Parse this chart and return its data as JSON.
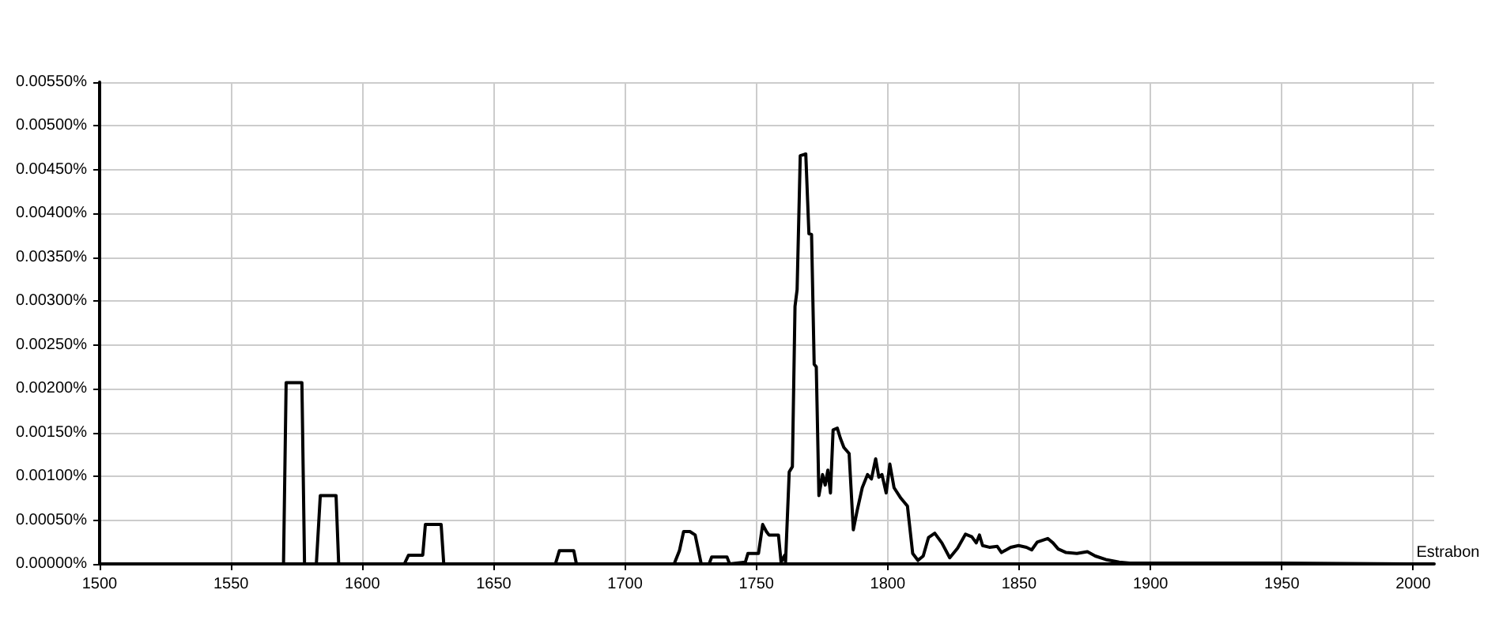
{
  "chart_data": {
    "type": "line",
    "series": [
      {
        "name": "Estrabon",
        "color": "#000000",
        "x": [
          1500,
          1570,
          1571,
          1577,
          1578,
          1582.5,
          1584,
          1590,
          1591,
          1616,
          1617.6,
          1623,
          1624,
          1630,
          1631,
          1673.5,
          1675,
          1680.5,
          1681.5,
          1718.7,
          1720.7,
          1722.3,
          1724.7,
          1726.7,
          1729,
          1732,
          1733,
          1738.8,
          1739.8,
          1745.8,
          1746.8,
          1750.8,
          1752.4,
          1753.8,
          1754.8,
          1758.4,
          1759.4,
          1760.8,
          1761.1,
          1762.5,
          1763.7,
          1764.7,
          1765.5,
          1766.7,
          1768.8,
          1770,
          1771,
          1772,
          1772.8,
          1773.8,
          1775.2,
          1776.2,
          1777.2,
          1778.2,
          1779.2,
          1780.8,
          1781.9,
          1783.3,
          1785.3,
          1786.9,
          1788.3,
          1790.3,
          1792.3,
          1793.8,
          1795.4,
          1796.6,
          1797.8,
          1799.4,
          1800.8,
          1802.4,
          1805,
          1807.5,
          1809.5,
          1811.5,
          1813.5,
          1815.5,
          1817.9,
          1820.6,
          1823.6,
          1826.6,
          1829.6,
          1832,
          1833.7,
          1834.9,
          1836.1,
          1838.7,
          1841.7,
          1843.3,
          1846.8,
          1849.8,
          1852.8,
          1854.8,
          1856.9,
          1860.9,
          1862.9,
          1864.9,
          1867.9,
          1872,
          1876,
          1879,
          1883,
          1888.1,
          1892.1,
          1900,
          1950,
          2000
        ],
        "values": [
          0,
          0,
          0.00207,
          0.00207,
          0,
          0,
          0.00078,
          0.00078,
          0,
          0,
          0.0001,
          0.0001,
          0.00045,
          0.00045,
          0,
          0,
          0.00015,
          0.00015,
          0,
          0,
          0.00015,
          0.00037,
          0.00037,
          0.00033,
          0,
          0,
          8e-05,
          8e-05,
          0,
          2e-05,
          0.00012,
          0.00012,
          0.00045,
          0.00037,
          0.00033,
          0.00033,
          2e-05,
          0.0001,
          2e-05,
          0.00105,
          0.00111,
          0.00294,
          0.00313,
          0.00466,
          0.00468,
          0.00377,
          0.00376,
          0.00228,
          0.00225,
          0.00078,
          0.00102,
          0.0009,
          0.00107,
          0.00081,
          0.00153,
          0.00155,
          0.00144,
          0.00133,
          0.00126,
          0.00039,
          0.0006,
          0.00087,
          0.00102,
          0.00097,
          0.0012,
          0.00099,
          0.00102,
          0.00081,
          0.00114,
          0.00087,
          0.00075,
          0.00066,
          0.00012,
          4e-05,
          9e-05,
          0.0003,
          0.00035,
          0.00024,
          7e-05,
          0.00018,
          0.00034,
          0.00031,
          0.00024,
          0.00033,
          0.00021,
          0.00019,
          0.0002,
          0.00013,
          0.00019,
          0.00021,
          0.00019,
          0.00016,
          0.00025,
          0.00029,
          0.00024,
          0.00017,
          0.00013,
          0.00012,
          0.00014,
          9e-05,
          5e-05,
          2e-05,
          1e-05,
          1e-05,
          1e-05,
          0
        ]
      }
    ],
    "xlim": [
      1500,
      2008
    ],
    "xticks": [
      1500,
      1550,
      1600,
      1650,
      1700,
      1750,
      1800,
      1850,
      1900,
      1950,
      2000
    ],
    "ylim": [
      0,
      0.0055
    ],
    "yticks": [
      {
        "value": 0,
        "label": "0.00000%"
      },
      {
        "value": 0.0005,
        "label": "0.00050%"
      },
      {
        "value": 0.001,
        "label": "0.00100%"
      },
      {
        "value": 0.0015,
        "label": "0.00150%"
      },
      {
        "value": 0.002,
        "label": "0.00200%"
      },
      {
        "value": 0.0025,
        "label": "0.00250%"
      },
      {
        "value": 0.003,
        "label": "0.00300%"
      },
      {
        "value": 0.0035,
        "label": "0.00350%"
      },
      {
        "value": 0.004,
        "label": "0.00400%"
      },
      {
        "value": 0.0045,
        "label": "0.00450%"
      },
      {
        "value": 0.005,
        "label": "0.00500%"
      },
      {
        "value": 0.0055,
        "label": "0.00550%"
      }
    ],
    "grid": true
  }
}
